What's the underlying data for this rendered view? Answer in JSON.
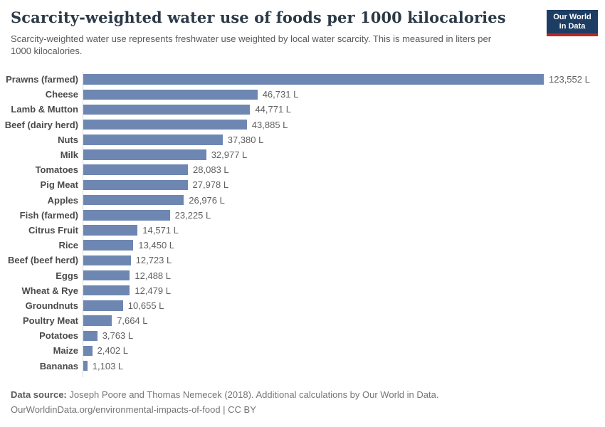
{
  "header": {
    "title": "Scarcity-weighted water use of foods per 1000 kilocalories",
    "subtitle": "Scarcity-weighted water use represents freshwater use weighted by local water scarcity. This is measured in liters per 1000 kilocalories.",
    "logo": {
      "line1": "Our World",
      "line2": "in Data",
      "bg_color": "#1d3d63",
      "stripe_color": "#bc2725"
    }
  },
  "chart_data": {
    "type": "bar",
    "orientation": "horizontal",
    "title": "Scarcity-weighted water use of foods per 1000 kilocalories",
    "xlabel": "",
    "ylabel": "",
    "unit": "liters per 1000 kilocalories",
    "xlim": [
      0,
      123552
    ],
    "grid": false,
    "bar_color": "#6e87b2",
    "categories": [
      "Prawns (farmed)",
      "Cheese",
      "Lamb & Mutton",
      "Beef (dairy herd)",
      "Nuts",
      "Milk",
      "Tomatoes",
      "Pig Meat",
      "Apples",
      "Fish (farmed)",
      "Citrus Fruit",
      "Rice",
      "Beef (beef herd)",
      "Eggs",
      "Wheat & Rye",
      "Groundnuts",
      "Poultry Meat",
      "Potatoes",
      "Maize",
      "Bananas"
    ],
    "values": [
      123552,
      46731,
      44771,
      43885,
      37380,
      32977,
      28083,
      27978,
      26976,
      23225,
      14571,
      13450,
      12723,
      12488,
      12479,
      10655,
      7664,
      3763,
      2402,
      1103
    ],
    "value_labels": [
      "123,552 L",
      "46,731 L",
      "44,771 L",
      "43,885 L",
      "37,380 L",
      "32,977 L",
      "28,083 L",
      "27,978 L",
      "26,976 L",
      "23,225 L",
      "14,571 L",
      "13,450 L",
      "12,723 L",
      "12,488 L",
      "12,479 L",
      "10,655 L",
      "7,664 L",
      "3,763 L",
      "2,402 L",
      "1,103 L"
    ]
  },
  "footer": {
    "datasource_label": "Data source:",
    "datasource_text": " Joseph Poore and Thomas Nemecek (2018). Additional calculations by Our World in Data.",
    "license_line": "OurWorldinData.org/environmental-impacts-of-food | CC BY"
  }
}
